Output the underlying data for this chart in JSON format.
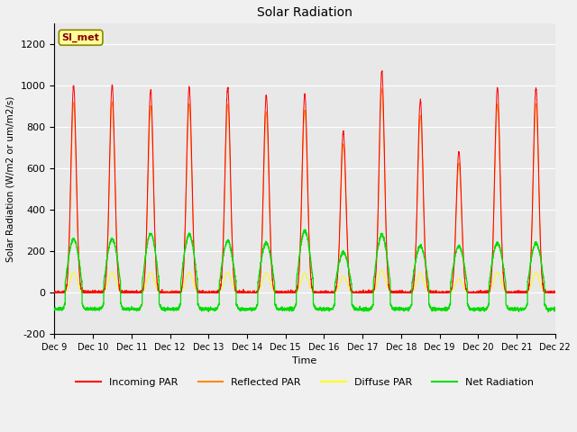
{
  "title": "Solar Radiation",
  "ylabel": "Solar Radiation (W/m2 or um/m2/s)",
  "xlabel": "Time",
  "ylim": [
    -200,
    1300
  ],
  "yticks": [
    -200,
    0,
    200,
    400,
    600,
    800,
    1000,
    1200
  ],
  "figure_bg": "#f0f0f0",
  "plot_bg": "#e8e8e8",
  "grid_color": "#ffffff",
  "station_label": "SI_met",
  "colors": {
    "incoming": "#ff0000",
    "reflected": "#ff8800",
    "diffuse": "#ffff00",
    "net": "#00dd00"
  },
  "legend": [
    "Incoming PAR",
    "Reflected PAR",
    "Diffuse PAR",
    "Net Radiation"
  ],
  "n_days": 13,
  "start_day": 9,
  "incoming_amps": [
    1000,
    1000,
    980,
    990,
    990,
    950,
    960,
    780,
    1070,
    930,
    680,
    990,
    990
  ],
  "net_peaks": [
    260,
    260,
    285,
    280,
    250,
    240,
    300,
    195,
    280,
    225,
    225,
    240,
    240
  ]
}
